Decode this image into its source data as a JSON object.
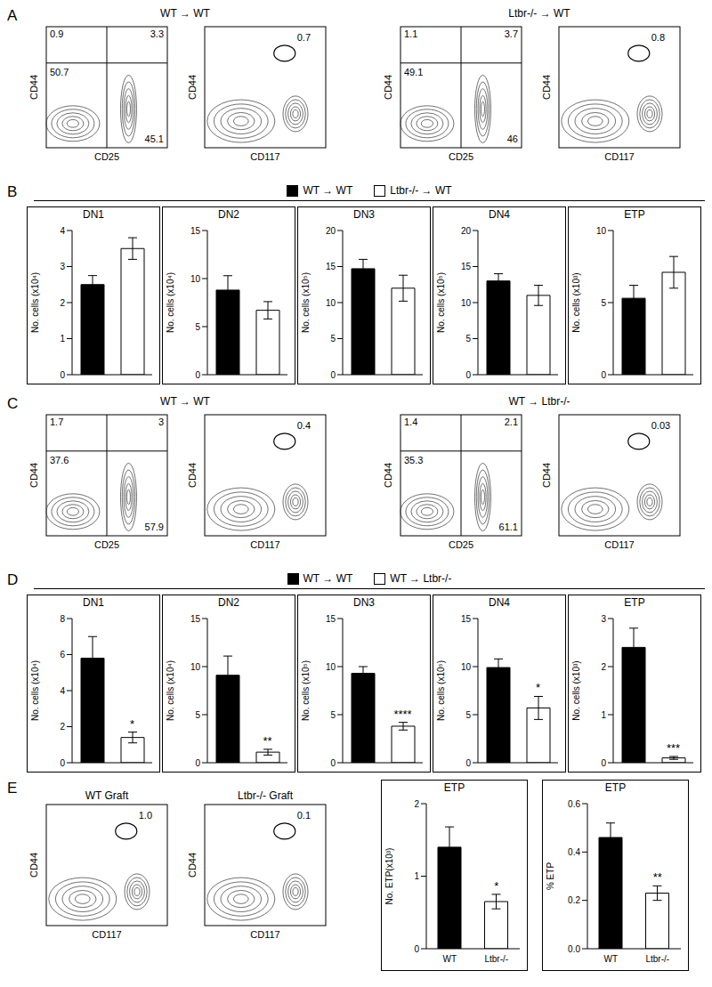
{
  "chart_data": [
    {
      "label": "A",
      "type": "flow",
      "groups": [
        {
          "title": "WT → WT",
          "plots": [
            {
              "xlabel": "CD25",
              "ylabel": "CD44",
              "quadrants": [
                0.9,
                3.3,
                50.7,
                45.1
              ]
            },
            {
              "xlabel": "CD117",
              "ylabel": "CD44",
              "gate": 0.7
            }
          ]
        },
        {
          "title": "Ltbr-/- → WT",
          "plots": [
            {
              "xlabel": "CD25",
              "ylabel": "CD44",
              "quadrants": [
                1.1,
                3.7,
                49.1,
                46
              ]
            },
            {
              "xlabel": "CD117",
              "ylabel": "CD44",
              "gate": 0.8
            }
          ]
        }
      ]
    },
    {
      "label": "B",
      "type": "bar_group",
      "series": [
        {
          "name": "WT → WT",
          "color": "#000000"
        },
        {
          "name": "Ltbr-/- → WT",
          "color": "#ffffff"
        }
      ],
      "charts": [
        {
          "type": "bar",
          "title": "DN1",
          "ylabel": "No. cells (x10⁴)",
          "categories": [
            null,
            null
          ],
          "values": [
            2.5,
            3.5
          ],
          "errors": [
            0.25,
            0.3
          ],
          "colors": [
            "#000000",
            "#ffffff"
          ],
          "ylim": [
            0,
            4
          ],
          "yticks": [
            0,
            1,
            2,
            3,
            4
          ]
        },
        {
          "type": "bar",
          "title": "DN2",
          "ylabel": "No. cells (x10⁴)",
          "categories": [
            null,
            null
          ],
          "values": [
            8.8,
            6.7
          ],
          "errors": [
            1.5,
            0.9
          ],
          "colors": [
            "#000000",
            "#ffffff"
          ],
          "ylim": [
            0,
            15
          ],
          "yticks": [
            0,
            5,
            10,
            15
          ]
        },
        {
          "type": "bar",
          "title": "DN3",
          "ylabel": "No. cells (x10⁵)",
          "categories": [
            null,
            null
          ],
          "values": [
            14.7,
            12
          ],
          "errors": [
            1.3,
            1.8
          ],
          "colors": [
            "#000000",
            "#ffffff"
          ],
          "ylim": [
            0,
            20
          ],
          "yticks": [
            0,
            5,
            10,
            15,
            20
          ]
        },
        {
          "type": "bar",
          "title": "DN4",
          "ylabel": "No. cells (x10⁵)",
          "categories": [
            null,
            null
          ],
          "values": [
            13,
            11
          ],
          "errors": [
            1,
            1.4
          ],
          "colors": [
            "#000000",
            "#ffffff"
          ],
          "ylim": [
            0,
            20
          ],
          "yticks": [
            0,
            5,
            10,
            15,
            20
          ]
        },
        {
          "type": "bar",
          "title": "ETP",
          "ylabel": "No. cells (x10³)",
          "categories": [
            null,
            null
          ],
          "values": [
            5.3,
            7.1
          ],
          "errors": [
            0.9,
            1.1
          ],
          "colors": [
            "#000000",
            "#ffffff"
          ],
          "ylim": [
            0,
            10
          ],
          "yticks": [
            0,
            5,
            10
          ]
        }
      ]
    },
    {
      "label": "C",
      "type": "flow",
      "groups": [
        {
          "title": "WT → WT",
          "plots": [
            {
              "xlabel": "CD25",
              "ylabel": "CD44",
              "quadrants": [
                1.7,
                3,
                37.6,
                57.9
              ]
            },
            {
              "xlabel": "CD117",
              "ylabel": "CD44",
              "gate": 0.4
            }
          ]
        },
        {
          "title": "WT → Ltbr-/-",
          "plots": [
            {
              "xlabel": "CD25",
              "ylabel": "CD44",
              "quadrants": [
                1.4,
                2.1,
                35.3,
                61.1
              ]
            },
            {
              "xlabel": "CD117",
              "ylabel": "CD44",
              "gate": 0.03
            }
          ]
        }
      ]
    },
    {
      "label": "D",
      "type": "bar_group",
      "series": [
        {
          "name": "WT → WT",
          "color": "#000000"
        },
        {
          "name": "WT → Ltbr-/-",
          "color": "#ffffff"
        }
      ],
      "charts": [
        {
          "type": "bar",
          "title": "DN1",
          "ylabel": "No. cells (x10⁴)",
          "categories": [
            null,
            null
          ],
          "values": [
            5.8,
            1.4
          ],
          "errors": [
            1.2,
            0.3
          ],
          "colors": [
            "#000000",
            "#ffffff"
          ],
          "ylim": [
            0,
            8
          ],
          "yticks": [
            0,
            2,
            4,
            6,
            8
          ],
          "annotations": [
            null,
            "*"
          ]
        },
        {
          "type": "bar",
          "title": "DN2",
          "ylabel": "No. cells (x10⁴)",
          "categories": [
            null,
            null
          ],
          "values": [
            9.1,
            1.1
          ],
          "errors": [
            2,
            0.3
          ],
          "colors": [
            "#000000",
            "#ffffff"
          ],
          "ylim": [
            0,
            15
          ],
          "yticks": [
            0,
            5,
            10,
            15
          ],
          "annotations": [
            null,
            "**"
          ]
        },
        {
          "type": "bar",
          "title": "DN3",
          "ylabel": "No. cells (x10⁵)",
          "categories": [
            null,
            null
          ],
          "values": [
            9.3,
            3.8
          ],
          "errors": [
            0.7,
            0.4
          ],
          "colors": [
            "#000000",
            "#ffffff"
          ],
          "ylim": [
            0,
            15
          ],
          "yticks": [
            0,
            5,
            10,
            15
          ],
          "annotations": [
            null,
            "****"
          ]
        },
        {
          "type": "bar",
          "title": "DN4",
          "ylabel": "No. cells (x10⁵)",
          "categories": [
            null,
            null
          ],
          "values": [
            9.9,
            5.7
          ],
          "errors": [
            0.9,
            1.2
          ],
          "colors": [
            "#000000",
            "#ffffff"
          ],
          "ylim": [
            0,
            15
          ],
          "yticks": [
            0,
            5,
            10,
            15
          ],
          "annotations": [
            null,
            "*"
          ]
        },
        {
          "type": "bar",
          "title": "ETP",
          "ylabel": "No. cells (x10³)",
          "categories": [
            null,
            null
          ],
          "values": [
            2.4,
            0.1
          ],
          "errors": [
            0.4,
            0.03
          ],
          "colors": [
            "#000000",
            "#ffffff"
          ],
          "ylim": [
            0,
            3
          ],
          "yticks": [
            0,
            1,
            2,
            3
          ],
          "annotations": [
            null,
            "***"
          ]
        }
      ]
    },
    {
      "label": "E",
      "type": "mixed",
      "plots": [
        {
          "title": "WT Graft",
          "xlabel": "CD117",
          "ylabel": "CD44",
          "gate": {
            "value": 1.0,
            "label": "1.0"
          }
        },
        {
          "title": "Ltbr-/- Graft",
          "xlabel": "CD117",
          "ylabel": "CD44",
          "gate": 0.1
        }
      ],
      "charts": [
        {
          "type": "bar",
          "title": "ETP",
          "ylabel": "No. ETP(x10³)",
          "categories": [
            "WT",
            "Ltbr-/-"
          ],
          "values": [
            1.4,
            0.65
          ],
          "errors": [
            0.28,
            0.1
          ],
          "colors": [
            "#000000",
            "#ffffff"
          ],
          "ylim": [
            0,
            2
          ],
          "yticks": [
            0,
            1,
            2
          ],
          "annotations": [
            null,
            "*"
          ]
        },
        {
          "type": "bar",
          "title": "ETP",
          "ylabel": "% ETP",
          "categories": [
            "WT",
            "Ltbr-/-"
          ],
          "values": [
            0.46,
            0.23
          ],
          "errors": [
            0.06,
            0.03
          ],
          "colors": [
            "#000000",
            "#ffffff"
          ],
          "ylim": [
            0,
            0.6
          ],
          "yticks": [
            {
              "value": 0,
              "label": "0.0"
            },
            0.2,
            0.4,
            0.6
          ],
          "annotations": [
            null,
            "**"
          ]
        }
      ]
    }
  ]
}
